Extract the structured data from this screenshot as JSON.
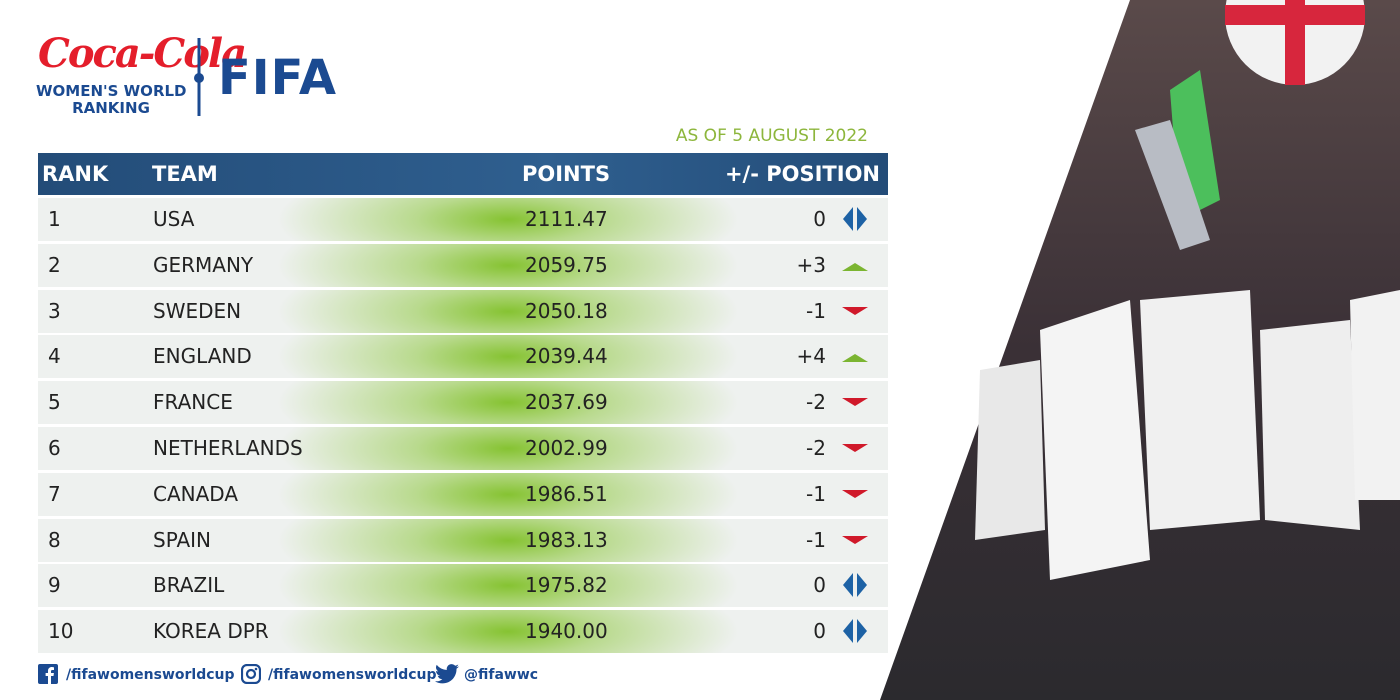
{
  "header": {
    "brand": "Coca-Cola",
    "subtitle_line1": "WOMEN'S WORLD",
    "subtitle_line2": "RANKING",
    "org": "FIFA",
    "date": "AS OF 5 AUGUST 2022"
  },
  "table": {
    "columns": [
      "RANK",
      "TEAM",
      "POINTS",
      "+/- POSITION"
    ],
    "rows": [
      [
        "1",
        "USA",
        "2111.47",
        "0"
      ],
      [
        "2",
        "GERMANY",
        "2059.75",
        "+3"
      ],
      [
        "3",
        "SWEDEN",
        "2050.18",
        "-1"
      ],
      [
        "4",
        "ENGLAND",
        "2039.44",
        "+4"
      ],
      [
        "5",
        "FRANCE",
        "2037.69",
        "-2"
      ],
      [
        "6",
        "NETHERLANDS",
        "2002.99",
        "-2"
      ],
      [
        "7",
        "CANADA",
        "1986.51",
        "-1"
      ],
      [
        "8",
        "SPAIN",
        "1983.13",
        "-1"
      ],
      [
        "9",
        "BRAZIL",
        "1975.82",
        "0"
      ],
      [
        "10",
        "KOREA DPR",
        "1940.00",
        "0"
      ]
    ]
  },
  "footer": {
    "facebook": "/fifawomensworldcup",
    "instagram": "/fifawomensworldcup",
    "twitter": "@fifawwc"
  }
}
